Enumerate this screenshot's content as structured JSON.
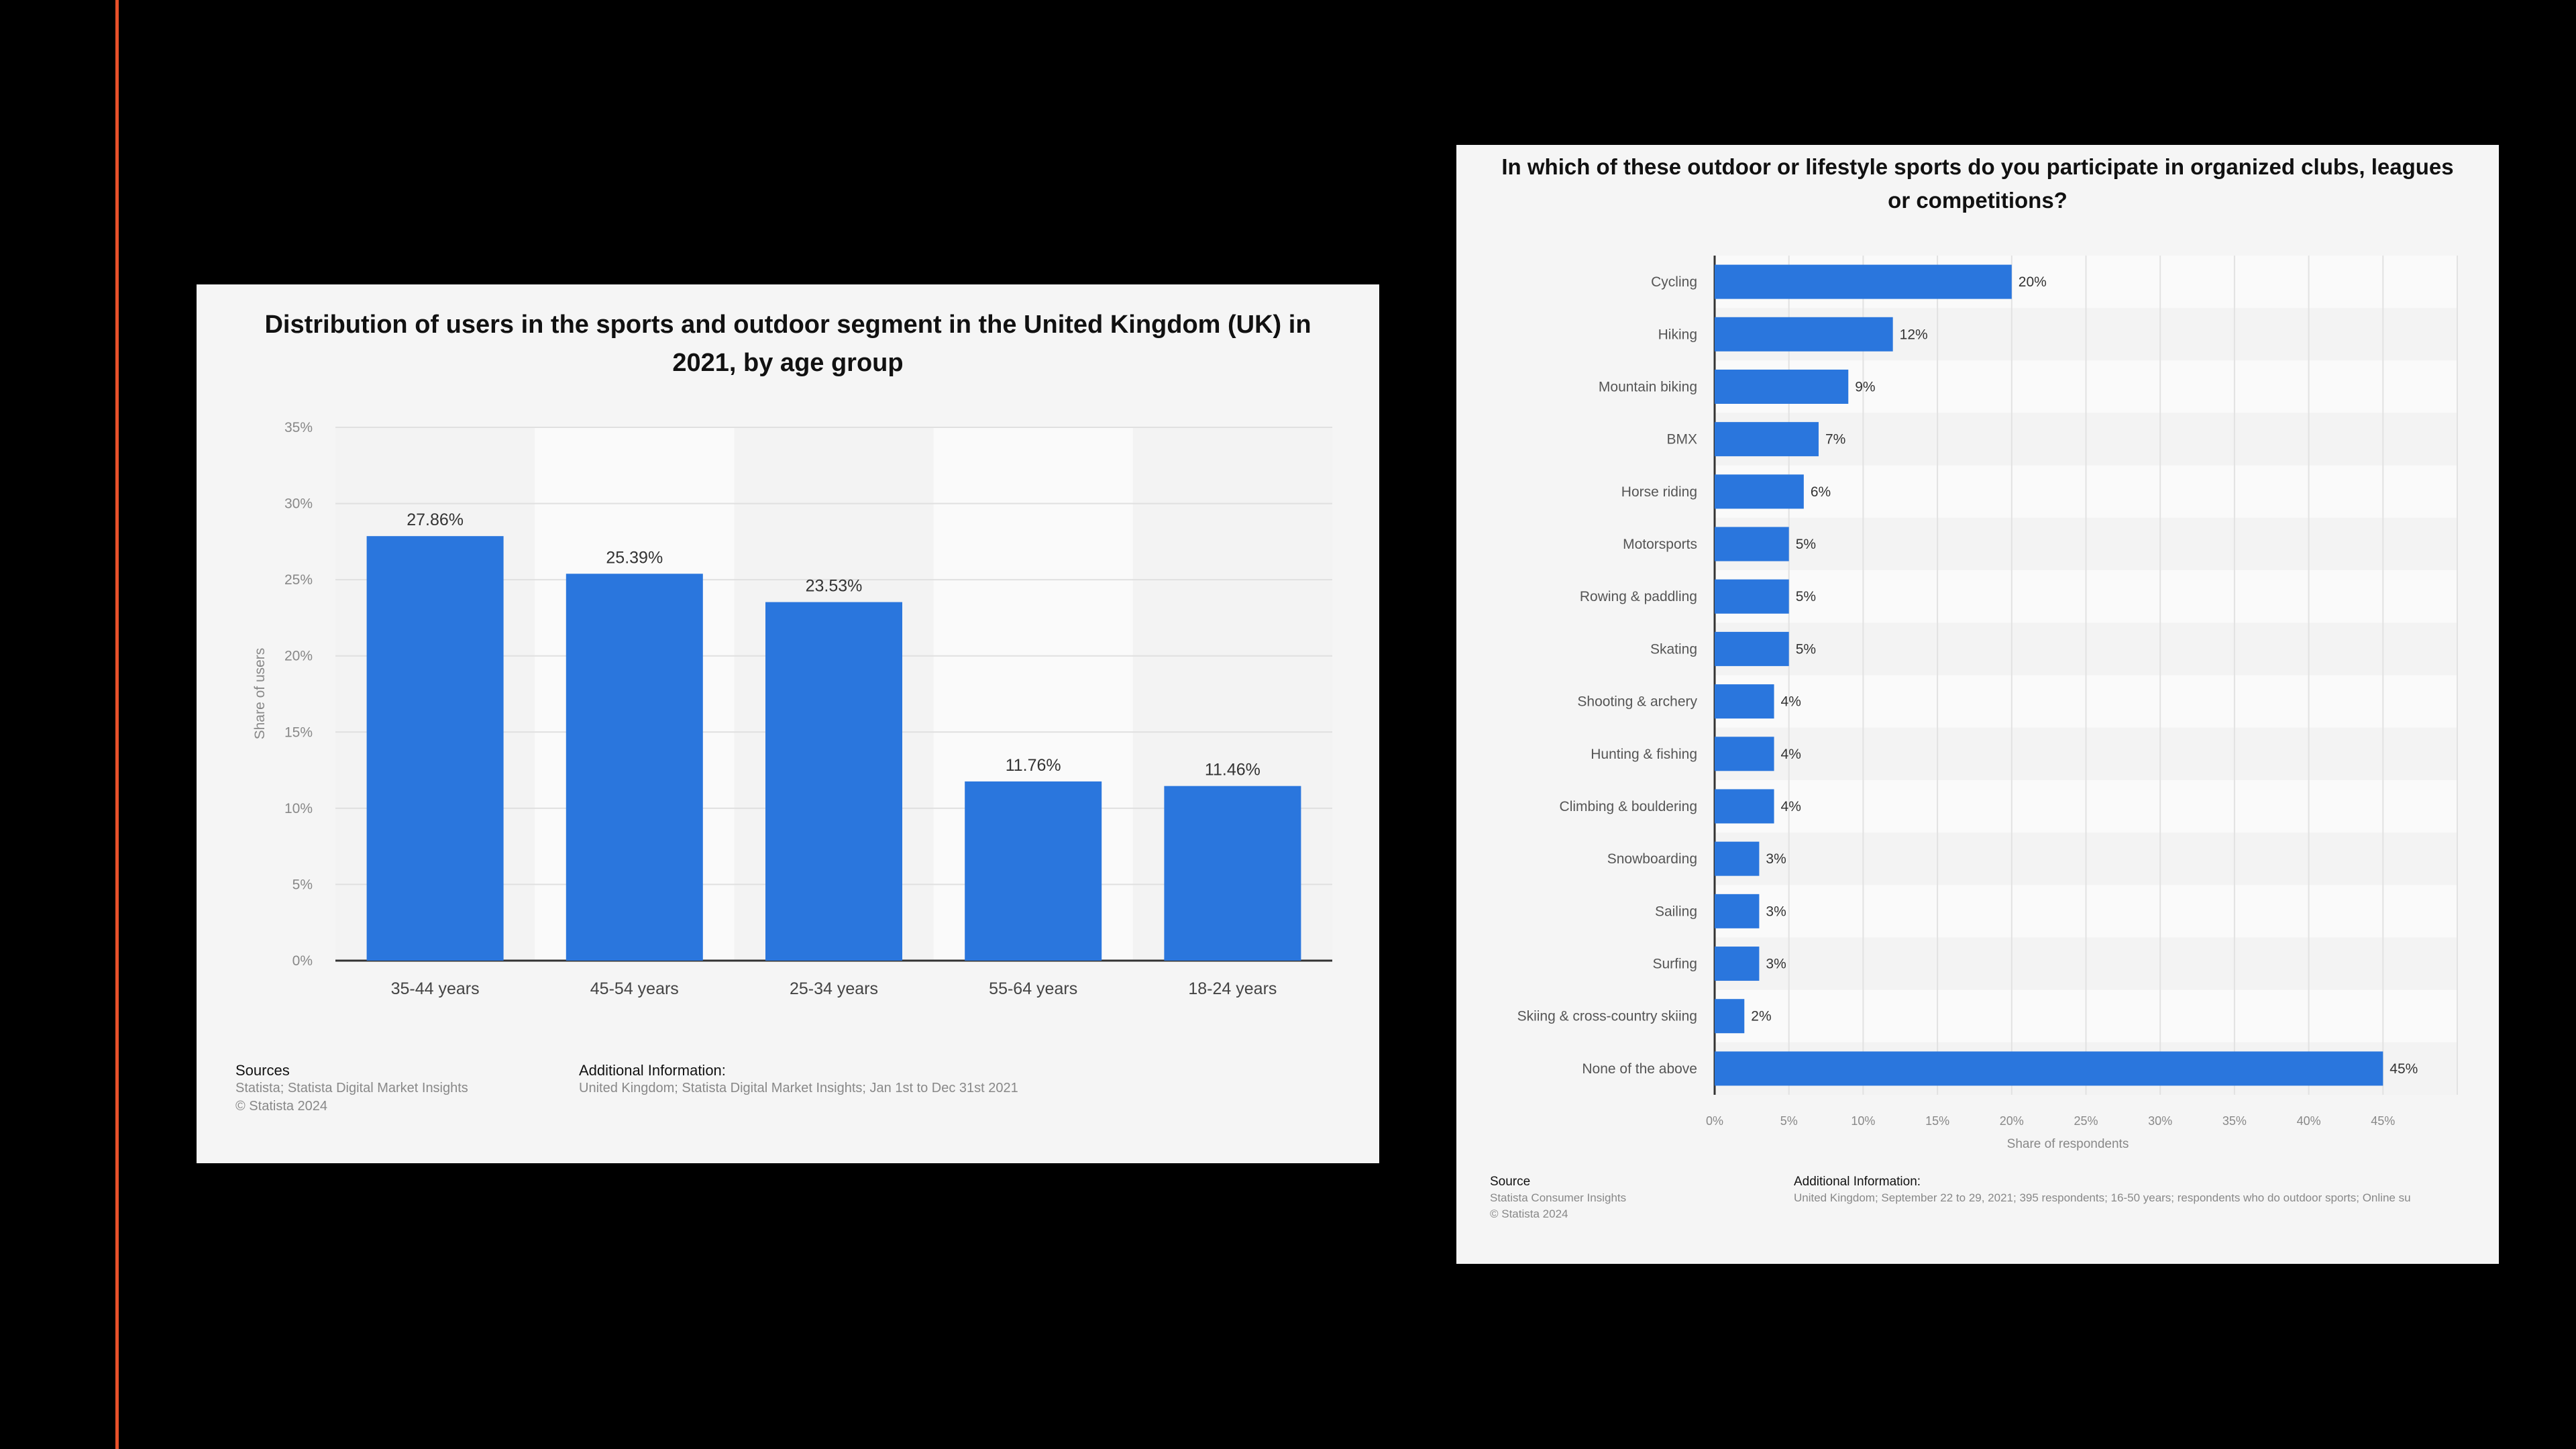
{
  "charts": [
    {
      "id": "age-distribution",
      "title": "Distribution of users in the sports and outdoor segment in the United Kingdom (UK) in 2021, by age group",
      "sources_label": "Sources",
      "sources": [
        "Statista; Statista Digital Market Insights",
        "© Statista 2024"
      ],
      "additional_label": "Additional Information:",
      "additional": "United Kingdom; Statista Digital Market Insights; Jan 1st to Dec 31st 2021"
    },
    {
      "id": "outdoor-sports-participation",
      "title": "In which of these outdoor or lifestyle sports do you participate in organized clubs, leagues or competitions?",
      "sources_label": "Source",
      "sources": [
        "Statista Consumer Insights",
        "© Statista 2024"
      ],
      "additional_label": "Additional Information:",
      "additional": "United Kingdom; September 22 to 29, 2021; 395 respondents; 16-50 years; respondents who do outdoor sports; Online su"
    }
  ],
  "chart_data": [
    {
      "type": "bar",
      "orientation": "vertical",
      "title": "Distribution of users in the sports and outdoor segment in the United Kingdom (UK) in 2021, by age group",
      "categories": [
        "35-44 years",
        "45-54 years",
        "25-34 years",
        "55-64 years",
        "18-24 years"
      ],
      "values": [
        27.86,
        25.39,
        23.53,
        11.76,
        11.46
      ],
      "value_labels": [
        "27.86%",
        "25.39%",
        "23.53%",
        "11.76%",
        "11.46%"
      ],
      "ylabel": "Share of users",
      "ylim": [
        0,
        35
      ],
      "yticks": [
        "0%",
        "5%",
        "10%",
        "15%",
        "20%",
        "25%",
        "30%",
        "35%"
      ],
      "grid": true,
      "bar_color": "#2a76dd"
    },
    {
      "type": "bar",
      "orientation": "horizontal",
      "title": "In which of these outdoor or lifestyle sports do you participate in organized clubs, leagues or competitions?",
      "categories": [
        "Cycling",
        "Hiking",
        "Mountain biking",
        "BMX",
        "Horse riding",
        "Motorsports",
        "Rowing & paddling",
        "Skating",
        "Shooting & archery",
        "Hunting & fishing",
        "Climbing & bouldering",
        "Snowboarding",
        "Sailing",
        "Surfing",
        "Skiing & cross-country skiing",
        "None of the above"
      ],
      "values": [
        20,
        12,
        9,
        7,
        6,
        5,
        5,
        5,
        4,
        4,
        4,
        3,
        3,
        3,
        2,
        45
      ],
      "value_labels": [
        "20%",
        "12%",
        "9%",
        "7%",
        "6%",
        "5%",
        "5%",
        "5%",
        "4%",
        "4%",
        "4%",
        "3%",
        "3%",
        "3%",
        "2%",
        "45%"
      ],
      "xlabel": "Share of respondents",
      "xlim": [
        0,
        50
      ],
      "xticks": [
        "0%",
        "5%",
        "10%",
        "15%",
        "20%",
        "25%",
        "30%",
        "35%",
        "40%",
        "45%"
      ],
      "grid": true,
      "bar_color": "#2a76dd"
    }
  ]
}
